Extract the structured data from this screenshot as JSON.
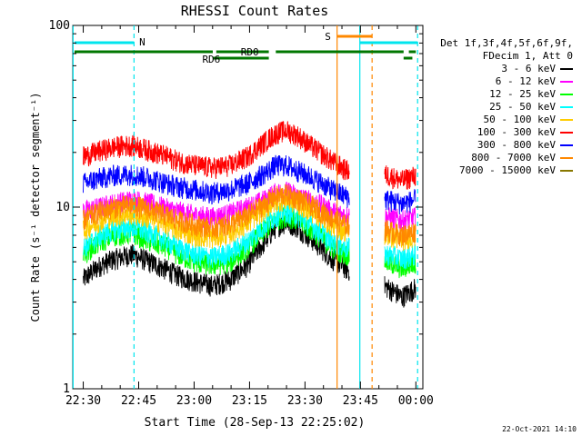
{
  "chart_data": {
    "type": "line",
    "title": "RHESSI Count Rates",
    "xlabel": "Start Time (28-Sep-13 22:25:02)",
    "ylabel": "Count Rate (s⁻¹ detector segment⁻¹)",
    "yscale": "log",
    "ylim": [
      1,
      100
    ],
    "ytick_labels": [
      "1",
      "10",
      "100"
    ],
    "xlim": [
      0,
      100
    ],
    "xtick_labels": [
      "22:30",
      "22:45",
      "23:00",
      "23:15",
      "23:30",
      "23:45",
      "00:00"
    ],
    "grid": false,
    "legend_position": "top-right",
    "legend_header": [
      "Det 1f,3f,4f,5f,6f,9f,",
      "FDecim 1, Att 0"
    ],
    "gaps_minutes": [
      [
        79,
        89
      ]
    ],
    "series": [
      {
        "name": "3 - 6 keV",
        "color": "#000000",
        "values": [
          [
            3,
            4.0
          ],
          [
            8,
            4.8
          ],
          [
            12,
            5.2
          ],
          [
            17,
            5.5
          ],
          [
            22,
            5.0
          ],
          [
            27,
            4.5
          ],
          [
            30,
            4.2
          ],
          [
            35,
            3.9
          ],
          [
            40,
            3.7
          ],
          [
            45,
            4.0
          ],
          [
            50,
            4.8
          ],
          [
            55,
            6.5
          ],
          [
            58,
            7.8
          ],
          [
            61,
            8.3
          ],
          [
            64,
            7.8
          ],
          [
            67,
            7.0
          ],
          [
            70,
            6.2
          ],
          [
            74,
            5.2
          ],
          [
            78,
            4.6
          ],
          [
            90,
            3.6
          ],
          [
            94,
            3.2
          ],
          [
            98,
            3.6
          ]
        ]
      },
      {
        "name": "6 - 12 keV",
        "color": "#ff00ff",
        "values": [
          [
            3,
            9.5
          ],
          [
            8,
            10.0
          ],
          [
            12,
            10.5
          ],
          [
            17,
            11.0
          ],
          [
            22,
            10.5
          ],
          [
            27,
            9.8
          ],
          [
            30,
            9.5
          ],
          [
            35,
            9.0
          ],
          [
            40,
            8.8
          ],
          [
            45,
            9.2
          ],
          [
            50,
            10.0
          ],
          [
            55,
            11.0
          ],
          [
            58,
            12.0
          ],
          [
            61,
            12.2
          ],
          [
            64,
            11.5
          ],
          [
            67,
            11.0
          ],
          [
            70,
            10.5
          ],
          [
            74,
            9.5
          ],
          [
            78,
            9.0
          ],
          [
            90,
            8.8
          ],
          [
            94,
            8.5
          ],
          [
            98,
            8.8
          ]
        ]
      },
      {
        "name": "12 - 25 keV",
        "color": "#00ff00",
        "values": [
          [
            3,
            5.5
          ],
          [
            8,
            6.5
          ],
          [
            12,
            7.0
          ],
          [
            17,
            7.2
          ],
          [
            22,
            6.5
          ],
          [
            27,
            6.0
          ],
          [
            30,
            5.5
          ],
          [
            35,
            5.0
          ],
          [
            40,
            4.8
          ],
          [
            45,
            5.0
          ],
          [
            50,
            6.0
          ],
          [
            55,
            7.5
          ],
          [
            58,
            8.5
          ],
          [
            61,
            9.0
          ],
          [
            64,
            8.5
          ],
          [
            67,
            7.8
          ],
          [
            70,
            7.0
          ],
          [
            74,
            6.0
          ],
          [
            78,
            5.5
          ],
          [
            90,
            5.0
          ],
          [
            94,
            4.6
          ],
          [
            98,
            5.0
          ]
        ]
      },
      {
        "name": "25 - 50 keV",
        "color": "#00ffff",
        "values": [
          [
            3,
            6.0
          ],
          [
            8,
            7.0
          ],
          [
            12,
            7.5
          ],
          [
            17,
            7.8
          ],
          [
            22,
            7.2
          ],
          [
            27,
            6.5
          ],
          [
            30,
            6.0
          ],
          [
            35,
            5.5
          ],
          [
            40,
            5.3
          ],
          [
            45,
            5.6
          ],
          [
            50,
            6.5
          ],
          [
            55,
            8.0
          ],
          [
            58,
            9.0
          ],
          [
            61,
            9.5
          ],
          [
            64,
            9.0
          ],
          [
            67,
            8.2
          ],
          [
            70,
            7.5
          ],
          [
            74,
            6.5
          ],
          [
            78,
            6.0
          ],
          [
            90,
            5.5
          ],
          [
            94,
            5.2
          ],
          [
            98,
            5.5
          ]
        ]
      },
      {
        "name": "50 - 100 keV",
        "color": "#ffcc00",
        "values": [
          [
            3,
            7.5
          ],
          [
            8,
            8.5
          ],
          [
            12,
            9.0
          ],
          [
            17,
            9.2
          ],
          [
            22,
            8.7
          ],
          [
            27,
            8.0
          ],
          [
            30,
            7.5
          ],
          [
            35,
            7.0
          ],
          [
            40,
            6.8
          ],
          [
            45,
            7.2
          ],
          [
            50,
            8.2
          ],
          [
            55,
            9.8
          ],
          [
            58,
            10.8
          ],
          [
            61,
            11.0
          ],
          [
            64,
            10.5
          ],
          [
            67,
            9.8
          ],
          [
            70,
            9.0
          ],
          [
            74,
            8.0
          ],
          [
            78,
            7.4
          ],
          [
            90,
            7.0
          ],
          [
            94,
            6.6
          ],
          [
            98,
            7.0
          ]
        ]
      },
      {
        "name": "100 - 300 keV",
        "color": "#ff0000",
        "values": [
          [
            3,
            19.0
          ],
          [
            8,
            20.5
          ],
          [
            12,
            21.5
          ],
          [
            17,
            22.0
          ],
          [
            22,
            20.5
          ],
          [
            27,
            19.0
          ],
          [
            30,
            18.0
          ],
          [
            35,
            17.0
          ],
          [
            40,
            16.5
          ],
          [
            45,
            17.0
          ],
          [
            50,
            19.0
          ],
          [
            55,
            23.0
          ],
          [
            58,
            25.5
          ],
          [
            61,
            26.5
          ],
          [
            64,
            25.0
          ],
          [
            67,
            22.5
          ],
          [
            70,
            20.5
          ],
          [
            74,
            18.0
          ],
          [
            78,
            16.0
          ],
          [
            90,
            15.0
          ],
          [
            94,
            14.0
          ],
          [
            98,
            15.0
          ]
        ]
      },
      {
        "name": "300 - 800 keV",
        "color": "#0000ff",
        "values": [
          [
            3,
            13.5
          ],
          [
            8,
            14.5
          ],
          [
            12,
            15.0
          ],
          [
            17,
            15.2
          ],
          [
            22,
            14.5
          ],
          [
            27,
            13.5
          ],
          [
            30,
            13.0
          ],
          [
            35,
            12.5
          ],
          [
            40,
            12.0
          ],
          [
            45,
            12.5
          ],
          [
            50,
            13.5
          ],
          [
            55,
            15.5
          ],
          [
            58,
            17.0
          ],
          [
            61,
            17.0
          ],
          [
            64,
            16.0
          ],
          [
            67,
            15.0
          ],
          [
            70,
            14.0
          ],
          [
            74,
            12.5
          ],
          [
            78,
            11.5
          ],
          [
            90,
            11.0
          ],
          [
            94,
            10.5
          ],
          [
            98,
            11.0
          ]
        ]
      },
      {
        "name": "800 - 7000 keV",
        "color": "#ff8800",
        "values": [
          [
            3,
            8.5
          ],
          [
            8,
            9.5
          ],
          [
            12,
            10.0
          ],
          [
            17,
            10.3
          ],
          [
            22,
            9.7
          ],
          [
            27,
            9.0
          ],
          [
            30,
            8.5
          ],
          [
            35,
            8.0
          ],
          [
            40,
            7.7
          ],
          [
            45,
            8.1
          ],
          [
            50,
            9.0
          ],
          [
            55,
            10.5
          ],
          [
            58,
            11.5
          ],
          [
            61,
            11.8
          ],
          [
            64,
            11.2
          ],
          [
            67,
            10.5
          ],
          [
            70,
            9.7
          ],
          [
            74,
            8.7
          ],
          [
            78,
            8.0
          ],
          [
            90,
            7.5
          ],
          [
            94,
            7.0
          ],
          [
            98,
            7.4
          ]
        ]
      },
      {
        "name": "7000 - 15000 keV",
        "color": "#887700",
        "values": []
      }
    ],
    "flag_lines": [
      {
        "label": "N",
        "color": "#00e5ee",
        "segments": [
          [
            0.5,
            17.5
          ],
          [
            82,
            98.5
          ]
        ]
      },
      {
        "label": "S",
        "color": "#ff8800",
        "segments": [
          [
            75.5,
            85.5
          ]
        ]
      },
      {
        "label": "RD0",
        "color": "#007700",
        "segments": [
          [
            0.5,
            40
          ],
          [
            41,
            56
          ],
          [
            58,
            94.5
          ],
          [
            96,
            98
          ]
        ]
      },
      {
        "label": "RD6",
        "color": "#007700",
        "segments": [
          [
            40,
            56
          ],
          [
            94.5,
            97
          ]
        ]
      }
    ],
    "vlines": [
      {
        "x": 0.1,
        "color": "#00e5ee",
        "style": "solid"
      },
      {
        "x": 17.5,
        "color": "#00e5ee",
        "style": "dashed"
      },
      {
        "x": 75.5,
        "color": "#ff8800",
        "style": "solid"
      },
      {
        "x": 82,
        "color": "#00e5ee",
        "style": "solid"
      },
      {
        "x": 85.5,
        "color": "#ff8800",
        "style": "dashed"
      },
      {
        "x": 98.5,
        "color": "#00e5ee",
        "style": "dashed"
      }
    ]
  },
  "footer_date": "22-Oct-2021 14:10"
}
